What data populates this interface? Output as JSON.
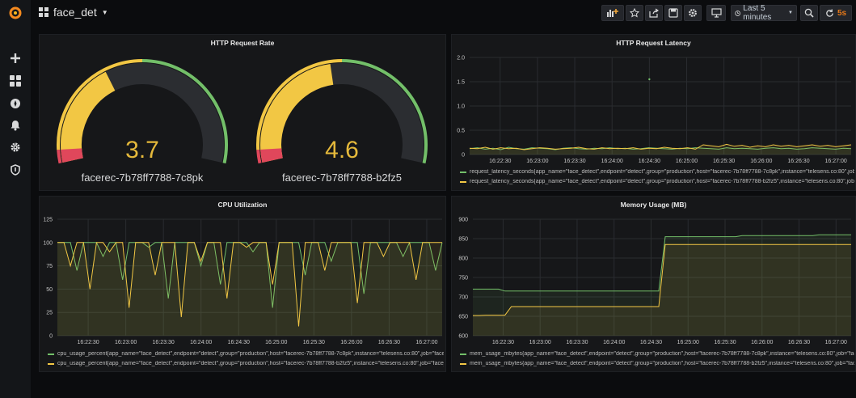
{
  "header": {
    "dashboard_title": "face_det"
  },
  "toolbar": {
    "time_range_label": "Last 5 minutes",
    "refresh_interval": "5s"
  },
  "colors": {
    "green": "#73bf69",
    "yellow": "#f2c744",
    "orange": "#e8a838",
    "red": "#e0475b",
    "accent": "#eb7b18"
  },
  "panels": {
    "request_rate": {
      "title": "HTTP Request Rate",
      "gauges": [
        {
          "value": "3.7",
          "label": "facerec-7b78ff7788-7c8pk"
        },
        {
          "value": "4.6",
          "label": "facerec-7b78ff7788-b2fz5"
        }
      ]
    },
    "latency": {
      "title": "HTTP Request Latency",
      "legend": [
        "request_latency_seconds{app_name=\"face_detect\",endpoint=\"detect\",group=\"production\",host=\"facerec-7b78ff7788-7c8pk\",instance=\"telesens.co:80\",job=\"face_d",
        "request_latency_seconds{app_name=\"face_detect\",endpoint=\"detect\",group=\"production\",host=\"facerec-7b78ff7788-b2fz5\",instance=\"telesens.co:80\",job=\"face_d"
      ]
    },
    "cpu": {
      "title": "CPU Utilization",
      "legend": [
        "cpu_usage_percent{app_name=\"face_detect\",endpoint=\"detect\",group=\"production\",host=\"facerec-7b78ff7788-7c8pk\",instance=\"telesens.co:80\",job=\"face_de",
        "cpu_usage_percent{app_name=\"face_detect\",endpoint=\"detect\",group=\"production\",host=\"facerec-7b78ff7788-b2fz5\",instance=\"telesens.co:80\",job=\"face_de"
      ]
    },
    "memory": {
      "title": "Memory Usage (MB)",
      "legend": [
        "mem_usage_mbytes{app_name=\"face_detect\",endpoint=\"detect\",group=\"production\",host=\"facerec-7b78ff7788-7c8pk\",instance=\"telesens.co:80\",job=\"face_d",
        "mem_usage_mbytes{app_name=\"face_detect\",endpoint=\"detect\",group=\"production\",host=\"facerec-7b78ff7788-b2fz5\",instance=\"telesens.co:80\",job=\"face_d"
      ]
    }
  },
  "chart_data": [
    {
      "type": "gauge",
      "title": "HTTP Request Rate",
      "series": [
        {
          "name": "facerec-7b78ff7788-7c8pk",
          "value": 3.7
        },
        {
          "name": "facerec-7b78ff7788-b2fz5",
          "value": 4.6
        }
      ],
      "ylim": [
        0,
        10
      ]
    },
    {
      "type": "line",
      "title": "HTTP Request Latency",
      "x_ticks": [
        "16:22:30",
        "16:23:00",
        "16:23:30",
        "16:24:00",
        "16:24:30",
        "16:25:00",
        "16:25:30",
        "16:26:00",
        "16:26:30",
        "16:27:00"
      ],
      "y_ticks": [
        "0",
        "0.5",
        "1.0",
        "1.5",
        "2.0"
      ],
      "ylim": [
        0,
        2.0
      ],
      "grid": true,
      "legend_placement": "bottom",
      "series": [
        {
          "name": "request_latency_seconds 7c8pk",
          "color": "#73bf69",
          "values": [
            0.12,
            0.14,
            0.11,
            0.13,
            0.1,
            0.15,
            0.12,
            0.11,
            0.14,
            0.13,
            0.12,
            0.1,
            0.13,
            0.14,
            0.12,
            0.11,
            0.13,
            0.12,
            0.14,
            0.12,
            0.13,
            0.11,
            0.12,
            0.14,
            0.13,
            0.12,
            0.11,
            0.13,
            0.12,
            0.14,
            0.13,
            0.12,
            0.11,
            0.14,
            0.12,
            0.13,
            0.12,
            0.11,
            0.13,
            0.14,
            0.12,
            0.13,
            0.11,
            0.12,
            0.14,
            0.13,
            0.12,
            0.11,
            0.13,
            0.12
          ]
        },
        {
          "name": "request_latency_seconds b2fz5",
          "color": "#f2c744",
          "values": [
            0.13,
            0.12,
            0.15,
            0.11,
            0.14,
            0.12,
            0.13,
            0.1,
            0.12,
            0.14,
            0.13,
            0.11,
            0.12,
            0.13,
            0.15,
            0.12,
            0.11,
            0.14,
            0.12,
            0.13,
            0.12,
            0.14,
            0.11,
            0.13,
            0.12,
            0.15,
            0.13,
            0.12,
            0.14,
            0.11,
            0.2,
            0.18,
            0.16,
            0.21,
            0.17,
            0.19,
            0.15,
            0.18,
            0.16,
            0.2,
            0.17,
            0.19,
            0.16,
            0.18,
            0.2,
            0.17,
            0.19,
            0.16,
            0.18,
            0.2
          ]
        }
      ],
      "points": [
        {
          "x": "16:24:30",
          "y": 1.55
        }
      ]
    },
    {
      "type": "line",
      "title": "CPU Utilization",
      "x_ticks": [
        "16:22:30",
        "16:23:00",
        "16:23:30",
        "16:24:00",
        "16:24:30",
        "16:25:00",
        "16:25:30",
        "16:26:00",
        "16:26:30",
        "16:27:00"
      ],
      "y_ticks": [
        "0",
        "25",
        "50",
        "75",
        "100",
        "125"
      ],
      "ylim": [
        0,
        125
      ],
      "grid": true,
      "legend_placement": "bottom",
      "series": [
        {
          "name": "cpu_usage_percent 7c8pk",
          "color": "#73bf69",
          "values": [
            100,
            100,
            100,
            70,
            100,
            100,
            100,
            85,
            100,
            100,
            60,
            100,
            100,
            100,
            95,
            100,
            100,
            40,
            100,
            100,
            100,
            100,
            75,
            100,
            100,
            55,
            100,
            100,
            100,
            100,
            90,
            100,
            100,
            30,
            100,
            100,
            100,
            100,
            65,
            100,
            100,
            100,
            80,
            100,
            100,
            100,
            100,
            45,
            100,
            100,
            100,
            100,
            100,
            85,
            100,
            100,
            100,
            100,
            70,
            100
          ]
        },
        {
          "name": "cpu_usage_percent b2fz5",
          "color": "#f2c744",
          "values": [
            100,
            100,
            75,
            100,
            100,
            50,
            100,
            100,
            90,
            100,
            100,
            30,
            100,
            100,
            100,
            65,
            100,
            100,
            100,
            20,
            100,
            100,
            80,
            100,
            100,
            100,
            40,
            100,
            100,
            95,
            100,
            100,
            100,
            55,
            100,
            100,
            100,
            10,
            100,
            100,
            100,
            70,
            100,
            100,
            100,
            100,
            35,
            100,
            100,
            100,
            85,
            100,
            100,
            100,
            100,
            60,
            100,
            100,
            100,
            100
          ]
        }
      ]
    },
    {
      "type": "line",
      "title": "Memory Usage (MB)",
      "x_ticks": [
        "16:22:30",
        "16:23:00",
        "16:23:30",
        "16:24:00",
        "16:24:30",
        "16:25:00",
        "16:25:30",
        "16:26:00",
        "16:26:30",
        "16:27:00"
      ],
      "y_ticks": [
        "600",
        "650",
        "700",
        "750",
        "800",
        "850",
        "900"
      ],
      "ylim": [
        600,
        900
      ],
      "grid": true,
      "legend_placement": "bottom",
      "series": [
        {
          "name": "mem_usage_mbytes 7c8pk",
          "color": "#73bf69",
          "values": [
            720,
            720,
            720,
            720,
            720,
            715,
            715,
            715,
            715,
            715,
            715,
            715,
            715,
            715,
            715,
            715,
            715,
            715,
            715,
            715,
            715,
            715,
            715,
            715,
            715,
            715,
            715,
            715,
            715,
            715,
            855,
            855,
            855,
            855,
            855,
            855,
            855,
            855,
            855,
            855,
            855,
            855,
            858,
            858,
            858,
            858,
            858,
            858,
            858,
            858,
            858,
            858,
            858,
            858,
            860,
            860,
            860,
            860,
            860,
            860
          ]
        },
        {
          "name": "mem_usage_mbytes b2fz5",
          "color": "#f2c744",
          "values": [
            652,
            652,
            653,
            653,
            653,
            653,
            675,
            675,
            675,
            675,
            675,
            675,
            675,
            675,
            675,
            675,
            675,
            675,
            675,
            675,
            675,
            675,
            675,
            675,
            675,
            675,
            675,
            675,
            675,
            675,
            835,
            835,
            835,
            835,
            835,
            835,
            835,
            835,
            835,
            835,
            835,
            835,
            835,
            835,
            835,
            835,
            835,
            835,
            835,
            835,
            835,
            835,
            835,
            835,
            835,
            835,
            835,
            835,
            835,
            835
          ]
        }
      ]
    }
  ]
}
